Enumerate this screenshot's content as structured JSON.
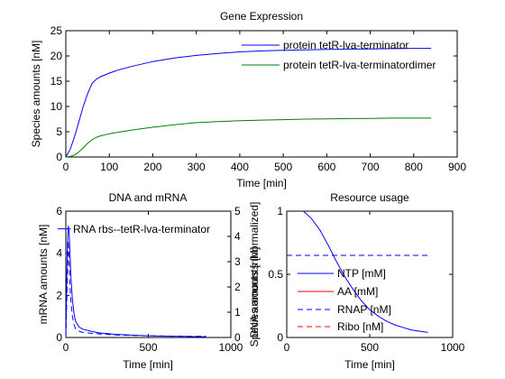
{
  "chart_data": [
    {
      "type": "line",
      "title": "Gene Expression",
      "xlabel": "Time [min]",
      "ylabel": "Species amounts [nM]",
      "xlim": [
        0,
        900
      ],
      "ylim": [
        0,
        25
      ],
      "xticks": [
        "0",
        "100",
        "200",
        "300",
        "400",
        "500",
        "600",
        "700",
        "800",
        "900"
      ],
      "yticks": [
        "0",
        "5",
        "10",
        "15",
        "20",
        "25"
      ],
      "grid": false,
      "legend_position": "top-right",
      "series": [
        {
          "name": "protein tetR-lva-terminator",
          "color": "#0000ff",
          "style": "solid",
          "x": [
            0,
            10,
            20,
            30,
            40,
            50,
            60,
            70,
            80,
            100,
            120,
            150,
            200,
            250,
            300,
            350,
            400,
            450,
            500,
            550,
            600,
            650,
            700,
            750,
            800,
            840
          ],
          "y": [
            0,
            1.5,
            4,
            7,
            10,
            12.5,
            14.5,
            15.4,
            15.9,
            16.6,
            17.2,
            17.9,
            18.9,
            19.6,
            20.1,
            20.5,
            20.8,
            21.0,
            21.1,
            21.2,
            21.3,
            21.35,
            21.4,
            21.45,
            21.5,
            21.5
          ]
        },
        {
          "name": "protein tetR-lva-terminatordimer",
          "color": "#008000",
          "style": "solid",
          "x": [
            0,
            10,
            20,
            30,
            40,
            50,
            60,
            70,
            80,
            100,
            120,
            150,
            200,
            250,
            300,
            350,
            400,
            450,
            500,
            550,
            600,
            650,
            700,
            750,
            800,
            840
          ],
          "y": [
            0,
            0.1,
            0.4,
            1,
            1.8,
            2.7,
            3.4,
            3.9,
            4.2,
            4.6,
            4.9,
            5.3,
            5.9,
            6.4,
            6.8,
            7.0,
            7.2,
            7.3,
            7.4,
            7.5,
            7.55,
            7.6,
            7.65,
            7.7,
            7.7,
            7.7
          ]
        }
      ]
    },
    {
      "type": "line",
      "title": "DNA and mRNA",
      "xlabel": "Time [min]",
      "ylabel": "mRNA amounts [nM]",
      "ylabel_right": "Species amounts [normalized]",
      "ylabel_right_overlap": "DNA amounts [nM]",
      "xlim": [
        0,
        1000
      ],
      "ylim": [
        0,
        6
      ],
      "ylim_right": [
        0,
        5
      ],
      "xticks": [
        "0",
        "500",
        "1000"
      ],
      "yticks": [
        "0",
        "2",
        "4",
        "6"
      ],
      "yticks_right": [
        "0",
        "1",
        "2",
        "3",
        "4",
        "5"
      ],
      "legend_position": "top-right",
      "series": [
        {
          "name": "RNA rbs--tetR-lva-terminator",
          "color": "#0000ff",
          "style": "solid",
          "x": [
            0,
            5,
            10,
            15,
            20,
            25,
            30,
            40,
            50,
            60,
            80,
            100,
            150,
            200,
            300,
            400,
            500,
            600,
            700,
            800,
            850
          ],
          "y": [
            0,
            2.5,
            4.5,
            5.3,
            5.0,
            4.0,
            3.0,
            1.8,
            1.1,
            0.75,
            0.5,
            0.4,
            0.3,
            0.22,
            0.15,
            0.11,
            0.08,
            0.06,
            0.05,
            0.04,
            0.04
          ]
        },
        {
          "name": "",
          "color": "#0000ff",
          "style": "dashed",
          "x": [
            0,
            10,
            15,
            20,
            25,
            30,
            40,
            50,
            60,
            80,
            100,
            150,
            200,
            300,
            400,
            500,
            600,
            700,
            800,
            850
          ],
          "y": [
            0,
            3.0,
            4.6,
            3.5,
            2.5,
            1.8,
            1.0,
            0.6,
            0.4,
            0.3,
            0.25,
            0.2,
            0.17,
            0.12,
            0.1,
            0.08,
            0.07,
            0.06,
            0.06,
            0.06
          ]
        },
        {
          "name": "",
          "color": "#0000ff",
          "style": "solid",
          "axis": "right",
          "x": [
            -50,
            0,
            30
          ],
          "y": [
            4.3,
            4.3,
            4.3
          ]
        }
      ]
    },
    {
      "type": "line",
      "title": "Resource usage",
      "xlabel": "Time [min]",
      "ylabel": "",
      "xlim": [
        0,
        1000
      ],
      "ylim": [
        0,
        1
      ],
      "xticks": [
        "0",
        "500",
        "1000"
      ],
      "yticks": [
        "0",
        "0.5",
        "1"
      ],
      "legend_position": "bottom-left",
      "series": [
        {
          "name": "NTP [mM]",
          "color": "#0000ff",
          "style": "solid",
          "x": [
            100,
            150,
            200,
            250,
            300,
            350,
            400,
            450,
            500,
            550,
            600,
            650,
            700,
            750,
            800,
            850
          ],
          "y": [
            1.0,
            0.94,
            0.85,
            0.73,
            0.6,
            0.48,
            0.38,
            0.29,
            0.22,
            0.17,
            0.13,
            0.1,
            0.08,
            0.06,
            0.05,
            0.04
          ]
        },
        {
          "name": "AA [mM]",
          "color": "#ff0000",
          "style": "solid",
          "x": [],
          "y": []
        },
        {
          "name": "RNAP [nM]",
          "color": "#0000ff",
          "style": "dashed",
          "x": [
            0,
            850
          ],
          "y": [
            0.65,
            0.65
          ]
        },
        {
          "name": "Ribo [nM]",
          "color": "#ff0000",
          "style": "dashed",
          "x": [],
          "y": []
        }
      ]
    }
  ]
}
